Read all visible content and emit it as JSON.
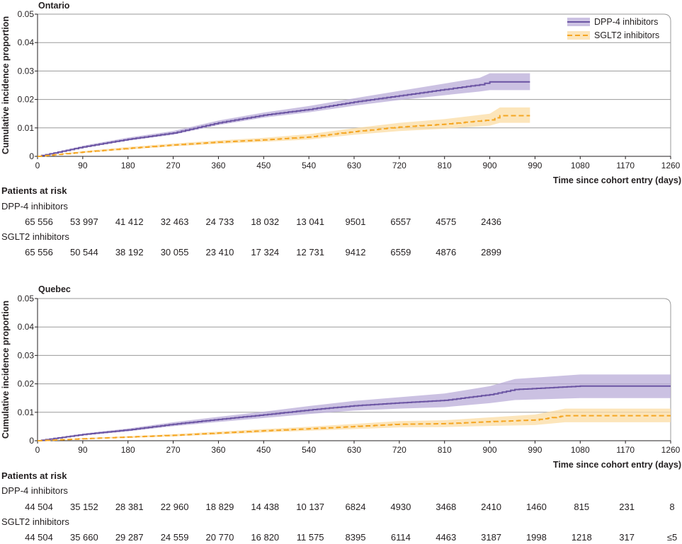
{
  "chart_data": [
    {
      "type": "line",
      "title": "Ontario",
      "ylabel": "Cumulative incidence proportion",
      "xlabel": "Time since cohort entry (days)",
      "xlim": [
        0,
        1260
      ],
      "ylim": [
        0,
        0.05
      ],
      "xticks": [
        0,
        90,
        180,
        270,
        360,
        450,
        540,
        630,
        720,
        810,
        900,
        990,
        1080,
        1170,
        1260
      ],
      "xtick_labels": [
        "0",
        "90",
        "180",
        "270",
        "360",
        "450",
        "540",
        "630",
        "720",
        "810",
        "900",
        "990",
        "1080",
        "1170",
        "1260"
      ],
      "yticks": [
        0,
        0.01,
        0.02,
        0.03,
        0.04,
        0.05
      ],
      "ytick_labels": [
        "0",
        "0.01",
        "0.02",
        "0.03",
        "0.04",
        "0.05"
      ],
      "grid": "horizontal",
      "legend": {
        "position": "top-right",
        "entries": [
          "DPP-4 inhibitors",
          "SGLT2 inhibitors"
        ]
      },
      "series": [
        {
          "name": "DPP-4 inhibitors",
          "color": "#6b54a3",
          "band_color": "#b9acd8",
          "style": "solid",
          "x": [
            0,
            90,
            180,
            270,
            360,
            450,
            540,
            630,
            720,
            810,
            880,
            900,
            980
          ],
          "y": [
            0,
            0.0033,
            0.006,
            0.0082,
            0.0118,
            0.0145,
            0.0165,
            0.0191,
            0.0213,
            0.0235,
            0.0252,
            0.0262,
            0.0262
          ],
          "lower": [
            0,
            0.0029,
            0.0055,
            0.0076,
            0.011,
            0.0136,
            0.0155,
            0.0178,
            0.0198,
            0.0215,
            0.0228,
            0.0233,
            0.0233
          ],
          "upper": [
            0,
            0.0037,
            0.0066,
            0.0089,
            0.0126,
            0.0154,
            0.0177,
            0.0204,
            0.023,
            0.0256,
            0.0276,
            0.0292,
            0.0292
          ]
        },
        {
          "name": "SGLT2 inhibitors",
          "color": "#f5a623",
          "band_color": "#fbdca3",
          "style": "dashed",
          "x": [
            0,
            90,
            180,
            270,
            360,
            450,
            540,
            630,
            720,
            810,
            900,
            920,
            980
          ],
          "y": [
            0,
            0.0015,
            0.0028,
            0.004,
            0.005,
            0.0058,
            0.0068,
            0.0087,
            0.0103,
            0.0113,
            0.0128,
            0.0143,
            0.0143
          ],
          "lower": [
            0,
            0.0012,
            0.0024,
            0.0035,
            0.0044,
            0.0051,
            0.0059,
            0.0076,
            0.0089,
            0.0097,
            0.0108,
            0.0118,
            0.0118
          ],
          "upper": [
            0,
            0.0018,
            0.0033,
            0.0045,
            0.0056,
            0.0065,
            0.0078,
            0.0099,
            0.0118,
            0.0131,
            0.015,
            0.0172,
            0.0172
          ]
        }
      ],
      "risk_table": {
        "heading": "Patients at risk",
        "x": [
          0,
          90,
          180,
          270,
          360,
          450,
          540,
          630,
          720,
          810,
          900
        ],
        "rows": [
          {
            "group": "DPP-4 inhibitors",
            "values": [
              "65 556",
              "53 997",
              "41 412",
              "32 463",
              "24 733",
              "18 032",
              "13 041",
              "9501",
              "6557",
              "4575",
              "2436"
            ]
          },
          {
            "group": "SGLT2 inhibitors",
            "values": [
              "65 556",
              "50 544",
              "38 192",
              "30 055",
              "23 410",
              "17 324",
              "12 731",
              "9412",
              "6559",
              "4876",
              "2899"
            ]
          }
        ]
      }
    },
    {
      "type": "line",
      "title": "Quebec",
      "ylabel": "Cumulative incidence proportion",
      "xlabel": "Time since cohort entry (days)",
      "xlim": [
        0,
        1260
      ],
      "ylim": [
        0,
        0.05
      ],
      "xticks": [
        0,
        90,
        180,
        270,
        360,
        450,
        540,
        630,
        720,
        810,
        900,
        990,
        1080,
        1170,
        1260
      ],
      "xtick_labels": [
        "0",
        "90",
        "180",
        "270",
        "360",
        "450",
        "540",
        "630",
        "720",
        "810",
        "900",
        "990",
        "1080",
        "1170",
        "1260"
      ],
      "yticks": [
        0,
        0.01,
        0.02,
        0.03,
        0.04,
        0.05
      ],
      "ytick_labels": [
        "0",
        "0.01",
        "0.02",
        "0.03",
        "0.04",
        "0.05"
      ],
      "grid": "horizontal",
      "series": [
        {
          "name": "DPP-4 inhibitors",
          "color": "#6b54a3",
          "band_color": "#b9acd8",
          "style": "solid",
          "x": [
            0,
            90,
            180,
            270,
            360,
            450,
            540,
            630,
            720,
            810,
            900,
            950,
            1080,
            1260
          ],
          "y": [
            0,
            0.0022,
            0.0038,
            0.0058,
            0.0075,
            0.0091,
            0.0108,
            0.0123,
            0.0133,
            0.0142,
            0.0162,
            0.018,
            0.0192,
            0.0192
          ],
          "lower": [
            0,
            0.0019,
            0.0033,
            0.0051,
            0.0066,
            0.008,
            0.0094,
            0.0106,
            0.0113,
            0.0118,
            0.0132,
            0.0143,
            0.015,
            0.015
          ],
          "upper": [
            0,
            0.0025,
            0.0043,
            0.0065,
            0.0084,
            0.0102,
            0.0122,
            0.014,
            0.0153,
            0.0166,
            0.0192,
            0.0217,
            0.0233,
            0.0233
          ]
        },
        {
          "name": "SGLT2 inhibitors",
          "color": "#f5a623",
          "band_color": "#fbdca3",
          "style": "dashed",
          "x": [
            0,
            90,
            180,
            270,
            360,
            450,
            540,
            630,
            720,
            810,
            900,
            990,
            1050,
            1260
          ],
          "y": [
            0,
            0.0007,
            0.0013,
            0.0019,
            0.0027,
            0.0035,
            0.0042,
            0.005,
            0.0058,
            0.006,
            0.0067,
            0.0073,
            0.0088,
            0.0088
          ],
          "lower": [
            0,
            0.0005,
            0.001,
            0.0015,
            0.0022,
            0.0029,
            0.0035,
            0.0041,
            0.0047,
            0.0048,
            0.0052,
            0.0055,
            0.0065,
            0.0065
          ],
          "upper": [
            0,
            0.0009,
            0.0016,
            0.0023,
            0.0032,
            0.0041,
            0.0049,
            0.0059,
            0.0069,
            0.0072,
            0.0082,
            0.0092,
            0.0113,
            0.0113
          ]
        }
      ],
      "risk_table": {
        "heading": "Patients at risk",
        "x": [
          0,
          90,
          180,
          270,
          360,
          450,
          540,
          630,
          720,
          810,
          900,
          990,
          1080,
          1170,
          1260
        ],
        "rows": [
          {
            "group": "DPP-4 inhibitors",
            "values": [
              "44 504",
              "35 152",
              "28 381",
              "22 960",
              "18 829",
              "14 438",
              "10 137",
              "6824",
              "4930",
              "3468",
              "2410",
              "1460",
              "815",
              "231",
              "8"
            ]
          },
          {
            "group": "SGLT2 inhibitors",
            "values": [
              "44 504",
              "35 660",
              "29 287",
              "24 559",
              "20 770",
              "16 820",
              "11 575",
              "8395",
              "6114",
              "4463",
              "3187",
              "1998",
              "1218",
              "317",
              "≤5"
            ]
          }
        ]
      }
    }
  ]
}
